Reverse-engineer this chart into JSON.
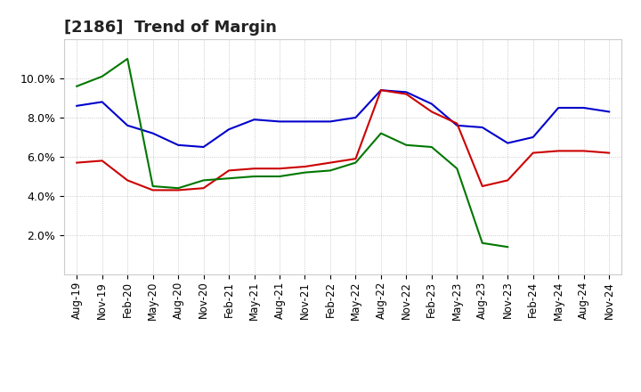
{
  "title": "[2186]  Trend of Margin",
  "x_labels": [
    "Aug-19",
    "Nov-19",
    "Feb-20",
    "May-20",
    "Aug-20",
    "Nov-20",
    "Feb-21",
    "May-21",
    "Aug-21",
    "Nov-21",
    "Feb-22",
    "May-22",
    "Aug-22",
    "Nov-22",
    "Feb-23",
    "May-23",
    "Aug-23",
    "Nov-23",
    "Feb-24",
    "May-24",
    "Aug-24",
    "Nov-24"
  ],
  "ordinary_income": [
    8.6,
    8.8,
    7.6,
    7.2,
    6.6,
    6.5,
    7.4,
    7.9,
    7.8,
    7.8,
    7.8,
    8.0,
    9.4,
    9.3,
    8.7,
    7.6,
    7.5,
    6.7,
    7.0,
    8.5,
    8.5,
    8.3
  ],
  "net_income": [
    5.7,
    5.8,
    4.8,
    4.3,
    4.3,
    4.4,
    5.3,
    5.4,
    5.4,
    5.5,
    5.7,
    5.9,
    9.4,
    9.2,
    8.3,
    7.7,
    4.5,
    4.8,
    6.2,
    6.3,
    6.3,
    6.2
  ],
  "operating_cashflow": [
    9.6,
    10.1,
    11.0,
    4.5,
    4.4,
    4.8,
    4.9,
    5.0,
    5.0,
    5.2,
    5.3,
    5.7,
    7.2,
    6.6,
    6.5,
    5.4,
    1.6,
    1.4,
    null,
    null,
    null,
    null
  ],
  "line_color_ordinary": "#0000cc",
  "line_color_net": "#cc0000",
  "line_color_cashflow": "#007700",
  "ylim_min": 0.0,
  "ylim_max": 12.0,
  "yticks": [
    2.0,
    4.0,
    6.0,
    8.0,
    10.0
  ],
  "background_color": "#ffffff",
  "plot_bg_color": "#ffffff",
  "grid_color": "#bbbbbb",
  "title_fontsize": 13,
  "tick_fontsize": 8.5,
  "ytick_fontsize": 9
}
